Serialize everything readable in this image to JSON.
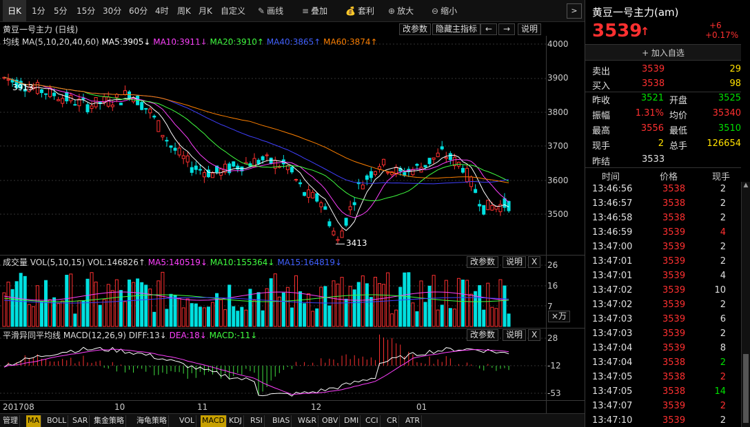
{
  "toolbar": {
    "periods": [
      "日K",
      "1分",
      "5分",
      "15分",
      "30分",
      "60分",
      "4时",
      "周K",
      "月K",
      "自定义"
    ],
    "tools": [
      {
        "label": "画线",
        "icon": "pencil-icon"
      },
      {
        "label": "叠加",
        "icon": "stack-icon"
      },
      {
        "label": "套利",
        "icon": "moneybag-icon"
      },
      {
        "label": "放大",
        "icon": "zoom-in-icon"
      },
      {
        "label": "缩小",
        "icon": "zoom-out-icon"
      }
    ],
    "arrow": ">"
  },
  "main": {
    "title": "黄豆一号主力 (日线)",
    "buttons": [
      "改参数",
      "隐藏主指标",
      "←",
      "→",
      "说明"
    ],
    "ma": {
      "prefix": "均线 MA(5,10,20,40,60)",
      "ma5": "MA5:3905↓",
      "ma10": "MA10:3911↓",
      "ma20": "MA20:3910↑",
      "ma40": "MA40:3865↑",
      "ma60": "MA60:3874↑"
    },
    "yticks": [
      "4000",
      "3900",
      "3800",
      "3700",
      "3600",
      "3500"
    ],
    "high_label": "3913",
    "low_label": "3413"
  },
  "vol": {
    "title": "成交量 VOL(5,10,15) VOL:146826↑",
    "ma5": "MA5:140519↓",
    "ma10": "MA10:155364↓",
    "ma15": "MA15:164819↓",
    "buttons": [
      "改参数",
      "说明",
      "X"
    ],
    "yticks": [
      "26",
      "16",
      "7"
    ],
    "unit": "×万"
  },
  "macd": {
    "title": "平滑异同平均线 MACD(12,26,9) DIFF:13↓",
    "dea": "DEA:18↓",
    "macd": "MACD:-11↓",
    "buttons": [
      "改参数",
      "说明",
      "X"
    ],
    "yticks": [
      "28",
      "-12",
      "-53"
    ]
  },
  "xaxis": [
    "201708",
    "10",
    "11",
    "12",
    "01"
  ],
  "bottom": [
    "管理",
    "MA",
    "BOLL",
    "SAR",
    "集金策略",
    "海龟策略",
    "VOL",
    "MACD",
    "KDJ",
    "RSI",
    "BIAS",
    "W&R",
    "OBV",
    "DMI",
    "CCI",
    "CR",
    "ATR"
  ],
  "quote": {
    "name": "黄豆一号主力(am)",
    "price": "3539",
    "arrow": "↑",
    "change": "+6",
    "pct": "+0.17%",
    "add": "+ 加入自选",
    "sell": {
      "label": "卖出",
      "price": "3539",
      "qty": "29"
    },
    "buy": {
      "label": "买入",
      "price": "3538",
      "qty": "98"
    },
    "stats": [
      {
        "l1": "昨收",
        "v1": "3521",
        "c1": "green",
        "l2": "开盘",
        "v2": "3525",
        "c2": "green"
      },
      {
        "l1": "振幅",
        "v1": "1.31%",
        "c1": "red",
        "l2": "均价",
        "v2": "35340",
        "c2": "red"
      },
      {
        "l1": "最高",
        "v1": "3556",
        "c1": "red",
        "l2": "最低",
        "v2": "3510",
        "c2": "green"
      },
      {
        "l1": "现手",
        "v1": "2",
        "c1": "yellow",
        "l2": "总手",
        "v2": "126654",
        "c2": "yellow"
      }
    ],
    "settle": {
      "label": "昨结",
      "value": "3533"
    },
    "ticks_header": [
      "时间",
      "价格",
      "现手"
    ],
    "ticks": [
      [
        "13:46:56",
        "3538",
        "2",
        "w"
      ],
      [
        "13:46:57",
        "3538",
        "2",
        "w"
      ],
      [
        "13:46:58",
        "3538",
        "2",
        "w"
      ],
      [
        "13:46:59",
        "3539",
        "4",
        "r"
      ],
      [
        "13:47:00",
        "3539",
        "2",
        "w"
      ],
      [
        "13:47:01",
        "3539",
        "2",
        "w"
      ],
      [
        "13:47:01",
        "3539",
        "4",
        "w"
      ],
      [
        "13:47:02",
        "3539",
        "10",
        "w"
      ],
      [
        "13:47:02",
        "3539",
        "2",
        "w"
      ],
      [
        "13:47:03",
        "3539",
        "6",
        "w"
      ],
      [
        "13:47:03",
        "3539",
        "2",
        "w"
      ],
      [
        "13:47:04",
        "3539",
        "8",
        "w"
      ],
      [
        "13:47:04",
        "3538",
        "2",
        "g"
      ],
      [
        "13:47:05",
        "3538",
        "2",
        "r"
      ],
      [
        "13:47:05",
        "3538",
        "14",
        "g"
      ],
      [
        "13:47:07",
        "3539",
        "2",
        "r"
      ],
      [
        "13:47:10",
        "3539",
        "2",
        "w"
      ]
    ]
  },
  "colors": {
    "up": "#ff3030",
    "down": "#00e0e0",
    "ma5": "#ffffff",
    "ma10": "#ff40ff",
    "ma20": "#40ff40",
    "ma40": "#4040ff",
    "ma60": "#ff8000"
  }
}
